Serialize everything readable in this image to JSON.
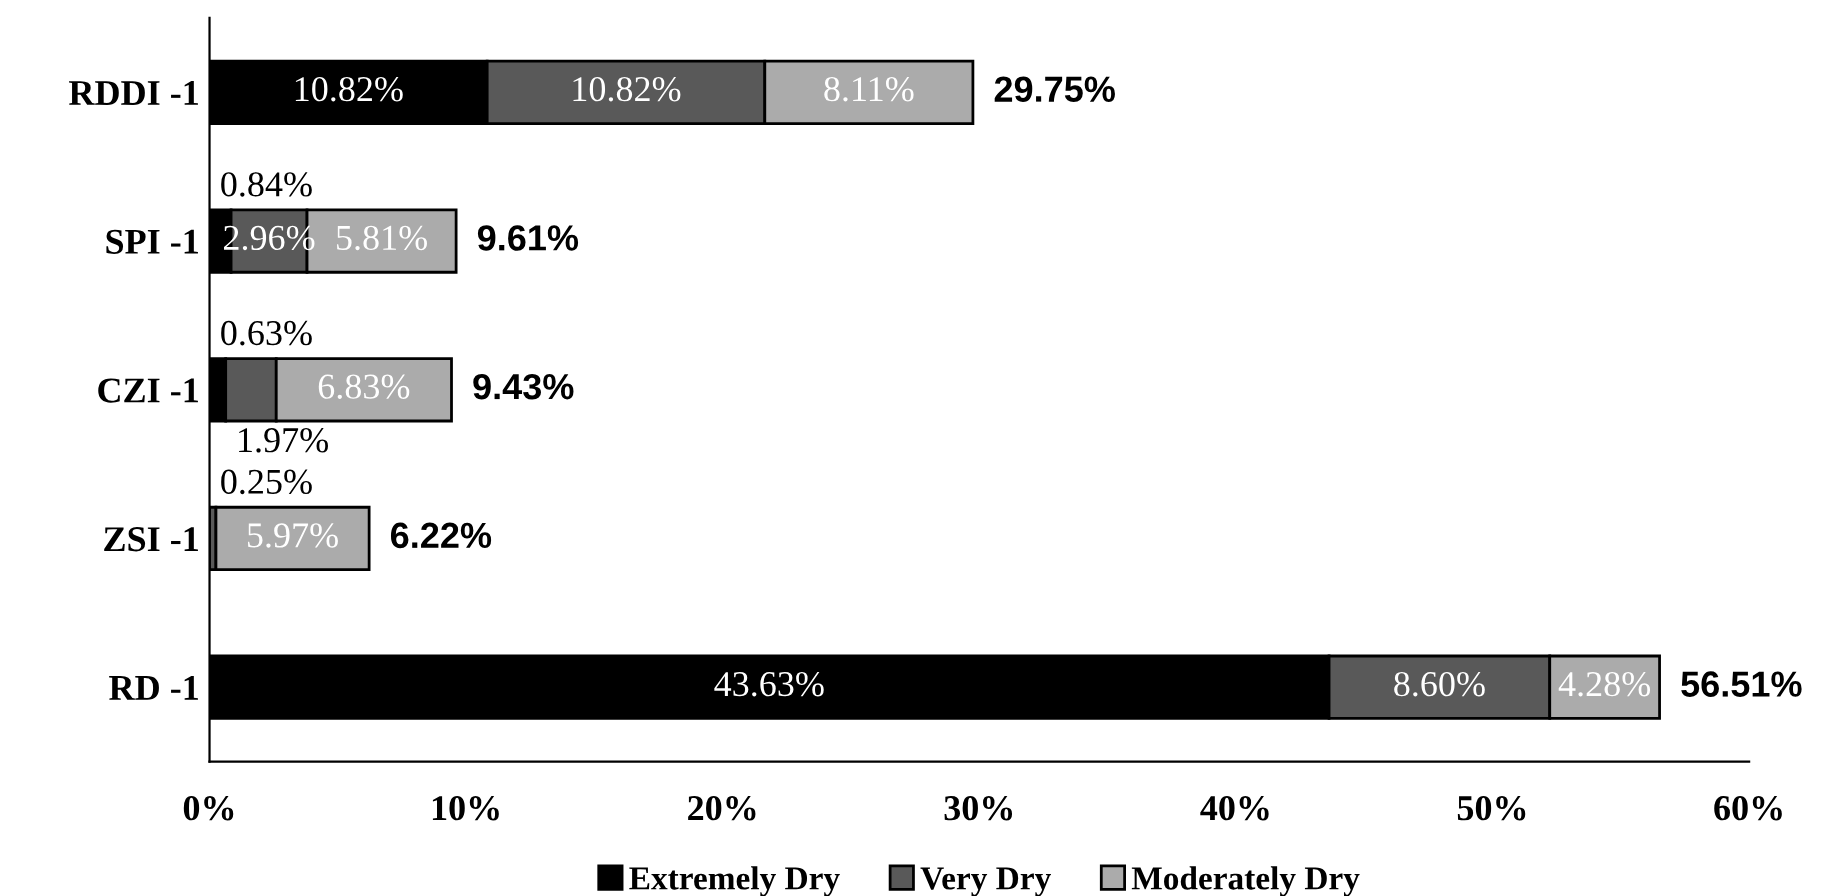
{
  "chart_data": {
    "type": "bar",
    "orientation": "horizontal",
    "stacked": true,
    "categories": [
      "RDDI -1",
      "SPI -1",
      "CZI -1",
      "ZSI -1",
      "RD -1"
    ],
    "series": [
      {
        "name": "Extremely Dry",
        "color": "#000000",
        "values": [
          10.82,
          0.84,
          0.63,
          0,
          43.63
        ],
        "value_labels": [
          "10.82%",
          "0.84%",
          "0.63%",
          null,
          "43.63%"
        ]
      },
      {
        "name": "Very Dry",
        "color": "#595959",
        "values": [
          10.82,
          2.96,
          1.97,
          0.25,
          8.6
        ],
        "value_labels": [
          "10.82%",
          "2.96%",
          "1.97%",
          "0.25%",
          "8.60%"
        ]
      },
      {
        "name": "Moderately Dry",
        "color": "#ababab",
        "values": [
          8.11,
          5.81,
          6.83,
          5.97,
          4.28
        ],
        "value_labels": [
          "8.11%",
          "5.81%",
          "6.83%",
          "5.97%",
          "4.28%"
        ]
      }
    ],
    "totals": [
      "29.75%",
      "9.61%",
      "9.43%",
      "6.22%",
      "56.51%"
    ],
    "xlim": [
      0,
      60
    ],
    "xticks": [
      {
        "value": 0,
        "label": "0%"
      },
      {
        "value": 10,
        "label": "10%"
      },
      {
        "value": 20,
        "label": "20%"
      },
      {
        "value": 30,
        "label": "30%"
      },
      {
        "value": 40,
        "label": "40%"
      },
      {
        "value": 50,
        "label": "50%"
      },
      {
        "value": 60,
        "label": "60%"
      }
    ],
    "legend": "bottom",
    "grid": false
  }
}
